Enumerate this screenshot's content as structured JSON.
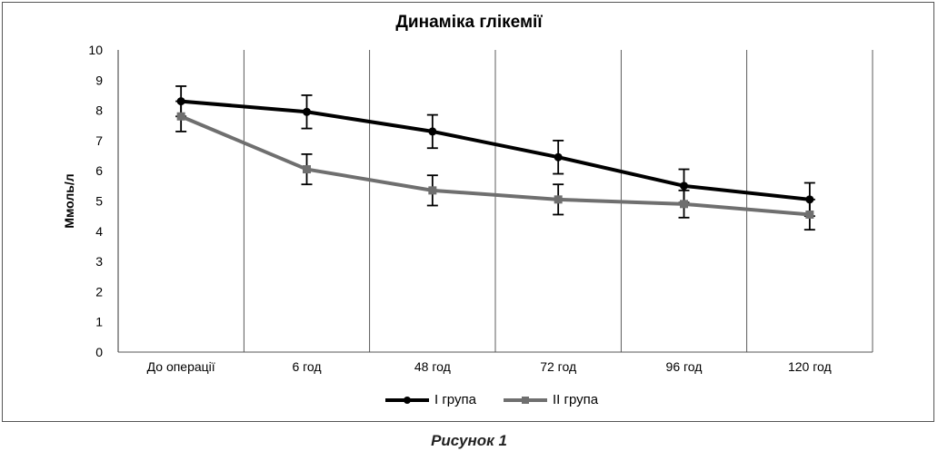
{
  "chart_data": {
    "type": "line",
    "title": "Динаміка глікемії",
    "ylabel": "Ммоль/л",
    "xlabel": "",
    "ylim": [
      0,
      10
    ],
    "yticks": [
      "0",
      "1",
      "2",
      "3",
      "4",
      "5",
      "6",
      "7",
      "8",
      "9",
      "10"
    ],
    "categories": [
      "До операції",
      "6 год",
      "48 год",
      "72 год",
      "96 год",
      "120 год"
    ],
    "series": [
      {
        "name": "I група",
        "color": "#000000",
        "marker": "circle",
        "values": [
          8.3,
          7.95,
          7.3,
          6.45,
          5.5,
          5.05
        ],
        "error": [
          0.5,
          0.55,
          0.55,
          0.55,
          0.55,
          0.55
        ]
      },
      {
        "name": "II група",
        "color": "#6f6f6f",
        "marker": "square",
        "values": [
          7.8,
          6.05,
          5.35,
          5.05,
          4.9,
          4.55
        ],
        "error": [
          0.5,
          0.5,
          0.5,
          0.5,
          0.45,
          0.5
        ]
      }
    ],
    "grid": "vertical separators between categories",
    "legend_position": "bottom"
  },
  "caption": "Рисунок 1"
}
